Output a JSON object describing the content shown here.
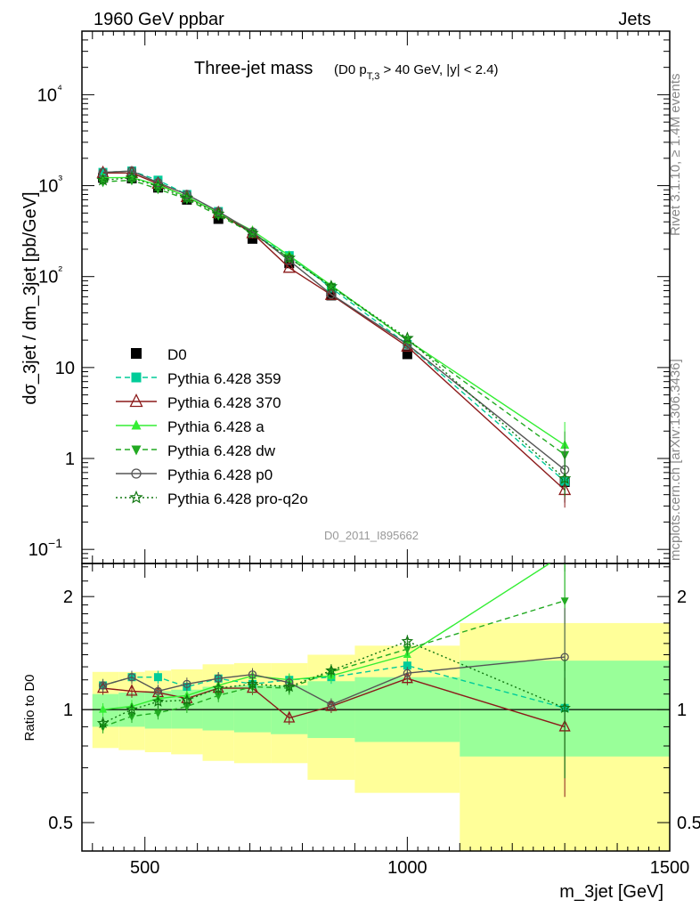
{
  "header": {
    "left": "1960 GeV ppbar",
    "right": "Jets"
  },
  "side_labels": {
    "rivet": "Rivet 3.1.10, ≥ 1.4M events",
    "mcplots": "mcplots.cern.ch [arXiv:1306.3436]"
  },
  "watermark": "D0_2011_I895662",
  "colors": {
    "band_inner": "#99ff99",
    "band_outer": "#ffff99"
  },
  "chart_data": [
    {
      "type": "line",
      "title_main": "Three-jet mass",
      "title_cut": "(D0 p_T,3 > 40 GeV, |y| < 2.4)",
      "title_cut_parts": {
        "pre": "(D0 p",
        "sub": "T,3",
        "post": " > 40 GeV, |y| < 2.4)"
      },
      "ylabel": "dσ_3jet / dm_3jet [pb/GeV]",
      "yscale": "log",
      "ylim": [
        0.07,
        50000
      ],
      "xlim": [
        380,
        1500
      ],
      "y_tick_labels": [
        "10−1",
        "1",
        "10",
        "10²",
        "10³",
        "10⁴"
      ],
      "x": [
        420,
        475,
        525,
        580,
        640,
        705,
        775,
        855,
        1000,
        1300
      ],
      "series": [
        {
          "name": "D0",
          "color": "#000000",
          "marker": "square",
          "line": "none",
          "values": [
            1220,
            1200,
            950,
            700,
            430,
            260,
            140,
            62,
            14,
            0.55
          ],
          "errors": [
            0.05,
            0.05,
            0.05,
            0.05,
            0.05,
            0.05,
            0.06,
            0.07,
            0.1,
            0.3
          ]
        },
        {
          "name": "Pythia 6.428 359",
          "color": "#00cc99",
          "marker": "square",
          "line": "dashed",
          "values": [
            1400,
            1450,
            1150,
            800,
            520,
            300,
            170,
            75,
            18,
            0.56
          ]
        },
        {
          "name": "Pythia 6.428 370",
          "color": "#8b1a1a",
          "marker": "triangle-open",
          "line": "solid",
          "values": [
            1380,
            1380,
            1050,
            750,
            500,
            300,
            125,
            63,
            17,
            0.45
          ]
        },
        {
          "name": "Pythia 6.428 a",
          "color": "#33ee33",
          "marker": "triangle",
          "line": "solid",
          "values": [
            1220,
            1230,
            1020,
            760,
            500,
            320,
            170,
            80,
            20,
            1.4
          ]
        },
        {
          "name": "Pythia 6.428 dw",
          "color": "#22aa22",
          "marker": "triangle-down",
          "line": "dashed",
          "values": [
            1100,
            1150,
            920,
            710,
            470,
            300,
            160,
            78,
            20,
            1.1
          ]
        },
        {
          "name": "Pythia 6.428 p0",
          "color": "#555555",
          "marker": "circle-open",
          "line": "solid",
          "values": [
            1400,
            1450,
            1080,
            800,
            520,
            310,
            150,
            64,
            18,
            0.75
          ]
        },
        {
          "name": "Pythia 6.428 pro-q2o",
          "color": "#117711",
          "marker": "star",
          "line": "dotted",
          "values": [
            1150,
            1220,
            980,
            730,
            490,
            300,
            160,
            78,
            21,
            0.6
          ]
        }
      ]
    },
    {
      "type": "line",
      "ylabel": "Ratio to D0",
      "xlabel": "m_3jet [GeV]",
      "yscale": "log",
      "ylim": [
        0.42,
        2.45
      ],
      "xlim": [
        380,
        1500
      ],
      "y_tick_labels": [
        "0.5",
        "1",
        "2"
      ],
      "x_tick_labels": [
        "500",
        "1000",
        "1500"
      ],
      "x_ticks": [
        500,
        1000,
        1500
      ],
      "reference": 1,
      "bands": [
        {
          "xmin": 400,
          "xmax": 450,
          "inner": [
            0.9,
            1.1
          ],
          "outer": [
            0.79,
            1.26
          ]
        },
        {
          "xmin": 450,
          "xmax": 500,
          "inner": [
            0.9,
            1.11
          ],
          "outer": [
            0.78,
            1.26
          ]
        },
        {
          "xmin": 500,
          "xmax": 550,
          "inner": [
            0.89,
            1.12
          ],
          "outer": [
            0.77,
            1.27
          ]
        },
        {
          "xmin": 550,
          "xmax": 610,
          "inner": [
            0.89,
            1.13
          ],
          "outer": [
            0.76,
            1.28
          ]
        },
        {
          "xmin": 610,
          "xmax": 670,
          "inner": [
            0.88,
            1.15
          ],
          "outer": [
            0.73,
            1.32
          ]
        },
        {
          "xmin": 670,
          "xmax": 740,
          "inner": [
            0.87,
            1.16
          ],
          "outer": [
            0.72,
            1.33
          ]
        },
        {
          "xmin": 740,
          "xmax": 810,
          "inner": [
            0.86,
            1.16
          ],
          "outer": [
            0.72,
            1.33
          ]
        },
        {
          "xmin": 810,
          "xmax": 900,
          "inner": [
            0.84,
            1.19
          ],
          "outer": [
            0.65,
            1.4
          ]
        },
        {
          "xmin": 900,
          "xmax": 1100,
          "inner": [
            0.82,
            1.22
          ],
          "outer": [
            0.6,
            1.48
          ]
        },
        {
          "xmin": 1100,
          "xmax": 1500,
          "inner": [
            0.75,
            1.35
          ],
          "outer": [
            0.37,
            1.7
          ]
        }
      ],
      "series": [
        {
          "name": "Pythia 6.428 359",
          "values": [
            1.16,
            1.22,
            1.22,
            1.15,
            1.21,
            1.17,
            1.2,
            1.22,
            1.31,
            1.01
          ]
        },
        {
          "name": "Pythia 6.428 370",
          "values": [
            1.14,
            1.12,
            1.11,
            1.07,
            1.14,
            1.14,
            0.95,
            1.02,
            1.21,
            0.9
          ]
        },
        {
          "name": "Pythia 6.428 a",
          "values": [
            1.0,
            1.02,
            1.07,
            1.09,
            1.16,
            1.23,
            1.2,
            1.23,
            1.4,
            2.6
          ]
        },
        {
          "name": "Pythia 6.428 dw",
          "values": [
            0.9,
            0.96,
            0.98,
            1.02,
            1.09,
            1.15,
            1.14,
            1.26,
            1.45,
            1.95
          ]
        },
        {
          "name": "Pythia 6.428 p0",
          "values": [
            1.16,
            1.22,
            1.12,
            1.17,
            1.21,
            1.24,
            1.18,
            1.03,
            1.25,
            1.38
          ]
        },
        {
          "name": "Pythia 6.428 pro-q2o",
          "values": [
            0.92,
            1.0,
            1.05,
            1.06,
            1.14,
            1.17,
            1.15,
            1.27,
            1.52,
            1.01
          ]
        }
      ]
    }
  ]
}
